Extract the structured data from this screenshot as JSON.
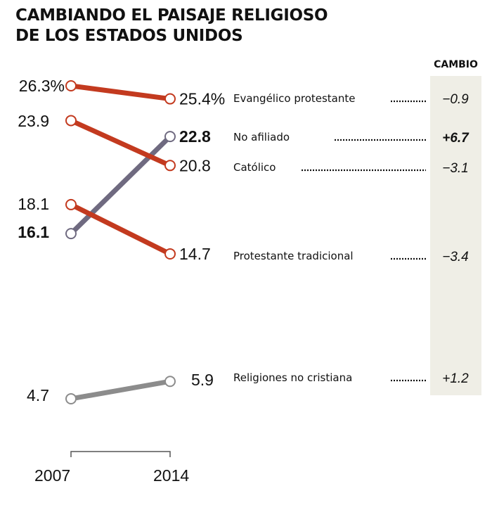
{
  "title_lines": [
    "CAMBIANDO EL PAISAJE RELIGIOSO",
    "DE LOS ESTADOS UNIDOS"
  ],
  "change_header": "CAMBIO",
  "colors": {
    "christian": "#c33a1f",
    "unaffiliated": "#6f6a80",
    "non_christian": "#8c8c8c",
    "change_column": "#efeee6"
  },
  "chart_data": {
    "type": "line",
    "title": "CAMBIANDO EL PAISAJE RELIGIOSO DE LOS ESTADOS UNIDOS",
    "x": [
      "2007",
      "2014"
    ],
    "xlabel": "",
    "ylabel": "",
    "unit": "%",
    "ylim": [
      4.7,
      26.3
    ],
    "grid": false,
    "series": [
      {
        "name": "Evangélico protestante",
        "values": [
          26.3,
          25.4
        ],
        "labels": [
          "26.3%",
          "25.4%"
        ],
        "change": "−0.9",
        "color_key": "christian",
        "bold": false
      },
      {
        "name": "No afiliado",
        "values": [
          16.1,
          22.8
        ],
        "labels": [
          "16.1",
          "22.8"
        ],
        "change": "+6.7",
        "color_key": "unaffiliated",
        "bold": true
      },
      {
        "name": "Católico",
        "values": [
          23.9,
          20.8
        ],
        "labels": [
          "23.9",
          "20.8"
        ],
        "change": "−3.1",
        "color_key": "christian",
        "bold": false
      },
      {
        "name": "Protestante tradicional",
        "values": [
          18.1,
          14.7
        ],
        "labels": [
          "18.1",
          "14.7"
        ],
        "change": "−3.4",
        "color_key": "christian",
        "bold": false
      },
      {
        "name": "Religiones no cristiana",
        "values": [
          4.7,
          5.9
        ],
        "labels": [
          "4.7",
          "5.9"
        ],
        "change": "+1.2",
        "color_key": "non_christian",
        "bold": false
      }
    ]
  }
}
